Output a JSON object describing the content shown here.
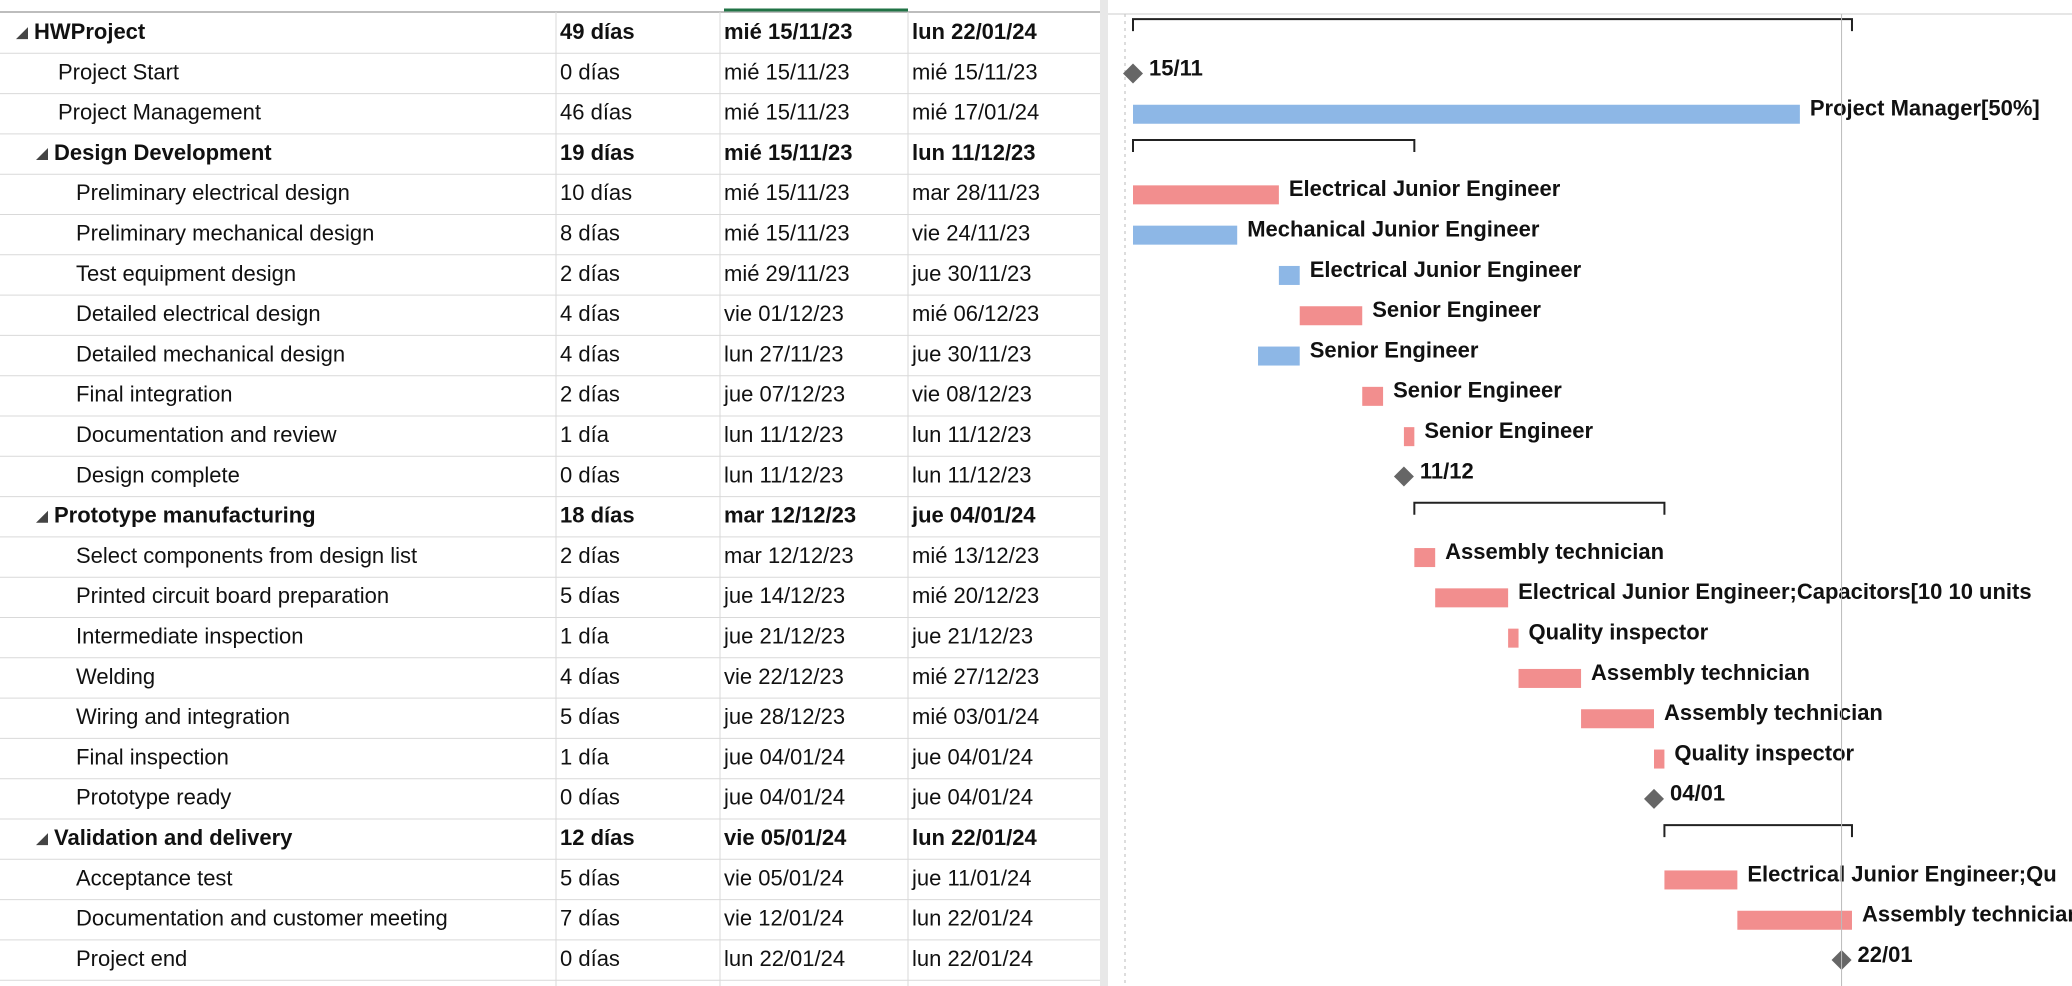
{
  "tasks": [
    {
      "name": "HWProject",
      "duration": "49 días",
      "start": "mié 15/11/23",
      "finish": "lun 22/01/24",
      "level": 0,
      "kind": "summary"
    },
    {
      "name": "Project Start",
      "duration": "0 días",
      "start": "mié 15/11/23",
      "finish": "mié 15/11/23",
      "level": 1,
      "kind": "milestone",
      "gantt_label": "15/11"
    },
    {
      "name": "Project Management",
      "duration": "46 días",
      "start": "mié 15/11/23",
      "finish": "mié 17/01/24",
      "level": 1,
      "kind": "task",
      "color": "#8db7e6",
      "gantt_label": "Project Manager[50%]"
    },
    {
      "name": "Design Development",
      "duration": "19 días",
      "start": "mié 15/11/23",
      "finish": "lun 11/12/23",
      "level": 1,
      "kind": "summary"
    },
    {
      "name": "Preliminary electrical design",
      "duration": "10 días",
      "start": "mié 15/11/23",
      "finish": "mar 28/11/23",
      "level": 2,
      "kind": "task",
      "color": "#f28e8e",
      "gantt_label": "Electrical Junior Engineer"
    },
    {
      "name": "Preliminary mechanical design",
      "duration": "8 días",
      "start": "mié 15/11/23",
      "finish": "vie 24/11/23",
      "level": 2,
      "kind": "task",
      "color": "#8db7e6",
      "gantt_label": "Mechanical Junior Engineer"
    },
    {
      "name": "Test equipment design",
      "duration": "2 días",
      "start": "mié 29/11/23",
      "finish": "jue 30/11/23",
      "level": 2,
      "kind": "task",
      "color": "#8db7e6",
      "gantt_label": "Electrical Junior Engineer"
    },
    {
      "name": "Detailed electrical design",
      "duration": "4 días",
      "start": "vie 01/12/23",
      "finish": "mié 06/12/23",
      "level": 2,
      "kind": "task",
      "color": "#f28e8e",
      "gantt_label": "Senior Engineer"
    },
    {
      "name": "Detailed mechanical design",
      "duration": "4 días",
      "start": "lun 27/11/23",
      "finish": "jue 30/11/23",
      "level": 2,
      "kind": "task",
      "color": "#8db7e6",
      "gantt_label": "Senior Engineer"
    },
    {
      "name": "Final integration",
      "duration": "2 días",
      "start": "jue 07/12/23",
      "finish": "vie 08/12/23",
      "level": 2,
      "kind": "task",
      "color": "#f28e8e",
      "gantt_label": "Senior Engineer"
    },
    {
      "name": "Documentation and review",
      "duration": "1 día",
      "start": "lun 11/12/23",
      "finish": "lun 11/12/23",
      "level": 2,
      "kind": "task",
      "color": "#f28e8e",
      "gantt_label": "Senior Engineer"
    },
    {
      "name": "Design complete",
      "duration": "0 días",
      "start": "lun 11/12/23",
      "finish": "lun 11/12/23",
      "level": 2,
      "kind": "milestone",
      "gantt_label": "11/12"
    },
    {
      "name": "Prototype manufacturing",
      "duration": "18 días",
      "start": "mar 12/12/23",
      "finish": "jue 04/01/24",
      "level": 1,
      "kind": "summary"
    },
    {
      "name": "Select components from design list",
      "duration": "2 días",
      "start": "mar 12/12/23",
      "finish": "mié 13/12/23",
      "level": 2,
      "kind": "task",
      "color": "#f28e8e",
      "gantt_label": "Assembly technician"
    },
    {
      "name": "Printed circuit board preparation",
      "duration": "5 días",
      "start": "jue 14/12/23",
      "finish": "mié 20/12/23",
      "level": 2,
      "kind": "task",
      "color": "#f28e8e",
      "gantt_label": "Electrical Junior Engineer;Capacitors[10 10 units"
    },
    {
      "name": "Intermediate inspection",
      "duration": "1 día",
      "start": "jue 21/12/23",
      "finish": "jue 21/12/23",
      "level": 2,
      "kind": "task",
      "color": "#f28e8e",
      "gantt_label": "Quality inspector"
    },
    {
      "name": "Welding",
      "duration": "4 días",
      "start": "vie 22/12/23",
      "finish": "mié 27/12/23",
      "level": 2,
      "kind": "task",
      "color": "#f28e8e",
      "gantt_label": "Assembly technician"
    },
    {
      "name": "Wiring and integration",
      "duration": "5 días",
      "start": "jue 28/12/23",
      "finish": "mié 03/01/24",
      "level": 2,
      "kind": "task",
      "color": "#f28e8e",
      "gantt_label": "Assembly technician"
    },
    {
      "name": "Final inspection",
      "duration": "1 día",
      "start": "jue 04/01/24",
      "finish": "jue 04/01/24",
      "level": 2,
      "kind": "task",
      "color": "#f28e8e",
      "gantt_label": "Quality inspector"
    },
    {
      "name": "Prototype ready",
      "duration": "0 días",
      "start": "jue 04/01/24",
      "finish": "jue 04/01/24",
      "level": 2,
      "kind": "milestone",
      "gantt_label": "04/01"
    },
    {
      "name": "Validation and delivery",
      "duration": "12 días",
      "start": "vie 05/01/24",
      "finish": "lun 22/01/24",
      "level": 1,
      "kind": "summary"
    },
    {
      "name": "Acceptance test",
      "duration": "5 días",
      "start": "vie 05/01/24",
      "finish": "jue 11/01/24",
      "level": 2,
      "kind": "task",
      "color": "#f28e8e",
      "gantt_label": "Electrical Junior Engineer;Qu"
    },
    {
      "name": "Documentation and customer meeting",
      "duration": "7 días",
      "start": "vie 12/01/24",
      "finish": "lun 22/01/24",
      "level": 2,
      "kind": "task",
      "color": "#f28e8e",
      "gantt_label": "Assembly technician"
    },
    {
      "name": "Project end",
      "duration": "0 días",
      "start": "lun 22/01/24",
      "finish": "lun 22/01/24",
      "level": 2,
      "kind": "milestone",
      "gantt_label": "22/01"
    }
  ]
}
